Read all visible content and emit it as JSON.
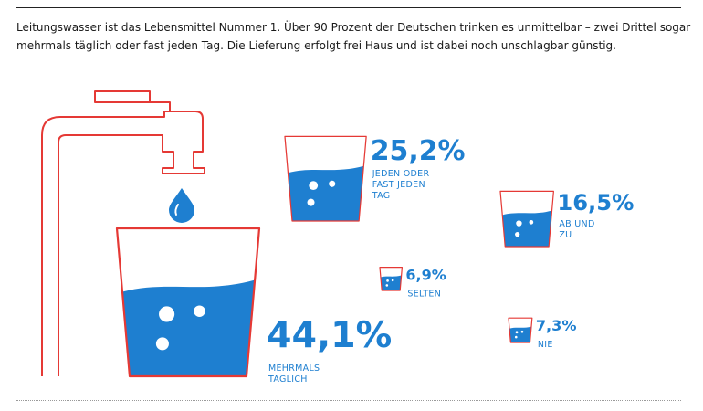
{
  "intro_text": "Leitungswasser ist das Lebensmittel Nummer 1. Über 90 Prozent der Deutschen trinken es unmittelbar – zwei Drittel sogar mehrmals täglich oder fast jeden Tag. Die Lieferung erfolgt frei Haus und ist dabei noch unschlagbar günstig.",
  "colors": {
    "water": "#1e7fd0",
    "outline": "#e53935",
    "text": "#1a1a1a"
  },
  "icons": [
    "water-tap-icon",
    "water-drop-icon",
    "glass-icon"
  ],
  "chart_data": {
    "type": "bar",
    "unit": "%",
    "categories": [
      "MEHRMALS TÄGLICH",
      "JEDEN ODER FAST JEDEN TAG",
      "AB UND ZU",
      "SELTEN",
      "NIE"
    ],
    "values": [
      44.1,
      25.2,
      16.5,
      6.9,
      7.3
    ],
    "value_labels": [
      "44,1%",
      "25,2%",
      "16,5%",
      "6,9%",
      "7,3%"
    ],
    "category_lines": [
      [
        "MEHRMALS",
        "TÄGLICH"
      ],
      [
        "JEDEN ODER",
        "FAST JEDEN",
        "TAG"
      ],
      [
        "AB UND",
        "ZU"
      ],
      [
        "SELTEN"
      ],
      [
        "NIE"
      ]
    ]
  }
}
